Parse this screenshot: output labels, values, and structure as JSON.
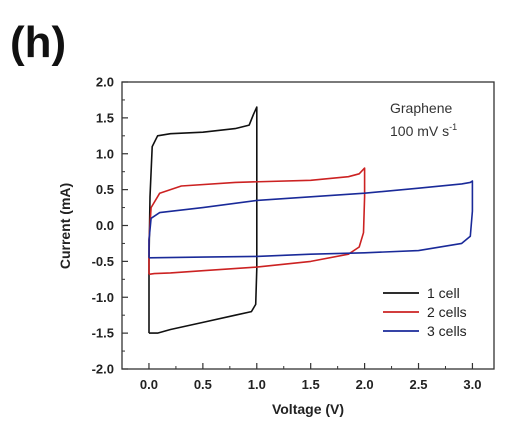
{
  "panel_label": "(h)",
  "chart_data": {
    "type": "line",
    "xlabel": "Voltage (V)",
    "ylabel": "Current (mA)",
    "xlim": [
      -0.25,
      3.2
    ],
    "ylim": [
      -2.0,
      2.0
    ],
    "xticks": [
      "0.0",
      "0.5",
      "1.0",
      "1.5",
      "2.0",
      "2.5",
      "3.0"
    ],
    "yticks": [
      "-2.0",
      "-1.5",
      "-1.0",
      "-0.5",
      "0.0",
      "0.5",
      "1.0",
      "1.5",
      "2.0"
    ],
    "annotation_line1": "Graphene",
    "annotation_line2": "100 mV s",
    "annotation_sup": "-1",
    "legend_position": "bottom-right",
    "grid": false,
    "series": [
      {
        "name": "1 cell",
        "color": "#111111",
        "points": [
          [
            0.0,
            -1.5
          ],
          [
            0.0,
            -0.5
          ],
          [
            0.01,
            0.4
          ],
          [
            0.03,
            1.1
          ],
          [
            0.08,
            1.25
          ],
          [
            0.2,
            1.28
          ],
          [
            0.5,
            1.3
          ],
          [
            0.8,
            1.35
          ],
          [
            0.93,
            1.4
          ],
          [
            0.97,
            1.55
          ],
          [
            1.0,
            1.65
          ],
          [
            1.0,
            0.8
          ],
          [
            1.0,
            -0.6
          ],
          [
            0.99,
            -1.1
          ],
          [
            0.95,
            -1.2
          ],
          [
            0.8,
            -1.25
          ],
          [
            0.5,
            -1.35
          ],
          [
            0.2,
            -1.45
          ],
          [
            0.08,
            -1.5
          ],
          [
            0.0,
            -1.5
          ]
        ]
      },
      {
        "name": "2 cells",
        "color": "#cc2222",
        "points": [
          [
            0.0,
            -0.68
          ],
          [
            0.0,
            -0.2
          ],
          [
            0.02,
            0.25
          ],
          [
            0.1,
            0.45
          ],
          [
            0.3,
            0.55
          ],
          [
            0.8,
            0.6
          ],
          [
            1.5,
            0.63
          ],
          [
            1.85,
            0.68
          ],
          [
            1.95,
            0.72
          ],
          [
            2.0,
            0.8
          ],
          [
            2.0,
            0.4
          ],
          [
            1.99,
            -0.1
          ],
          [
            1.95,
            -0.3
          ],
          [
            1.85,
            -0.4
          ],
          [
            1.5,
            -0.5
          ],
          [
            1.0,
            -0.58
          ],
          [
            0.5,
            -0.63
          ],
          [
            0.2,
            -0.66
          ],
          [
            0.05,
            -0.67
          ],
          [
            0.0,
            -0.68
          ]
        ]
      },
      {
        "name": "3 cells",
        "color": "#1a2a99",
        "points": [
          [
            0.0,
            -0.45
          ],
          [
            0.0,
            -0.2
          ],
          [
            0.02,
            0.1
          ],
          [
            0.1,
            0.18
          ],
          [
            0.5,
            0.25
          ],
          [
            1.0,
            0.35
          ],
          [
            1.5,
            0.4
          ],
          [
            2.0,
            0.45
          ],
          [
            2.5,
            0.52
          ],
          [
            2.9,
            0.58
          ],
          [
            2.98,
            0.6
          ],
          [
            3.0,
            0.62
          ],
          [
            3.0,
            0.2
          ],
          [
            2.98,
            -0.15
          ],
          [
            2.9,
            -0.25
          ],
          [
            2.5,
            -0.35
          ],
          [
            2.0,
            -0.38
          ],
          [
            1.5,
            -0.4
          ],
          [
            1.0,
            -0.43
          ],
          [
            0.5,
            -0.44
          ],
          [
            0.0,
            -0.45
          ]
        ]
      }
    ]
  }
}
